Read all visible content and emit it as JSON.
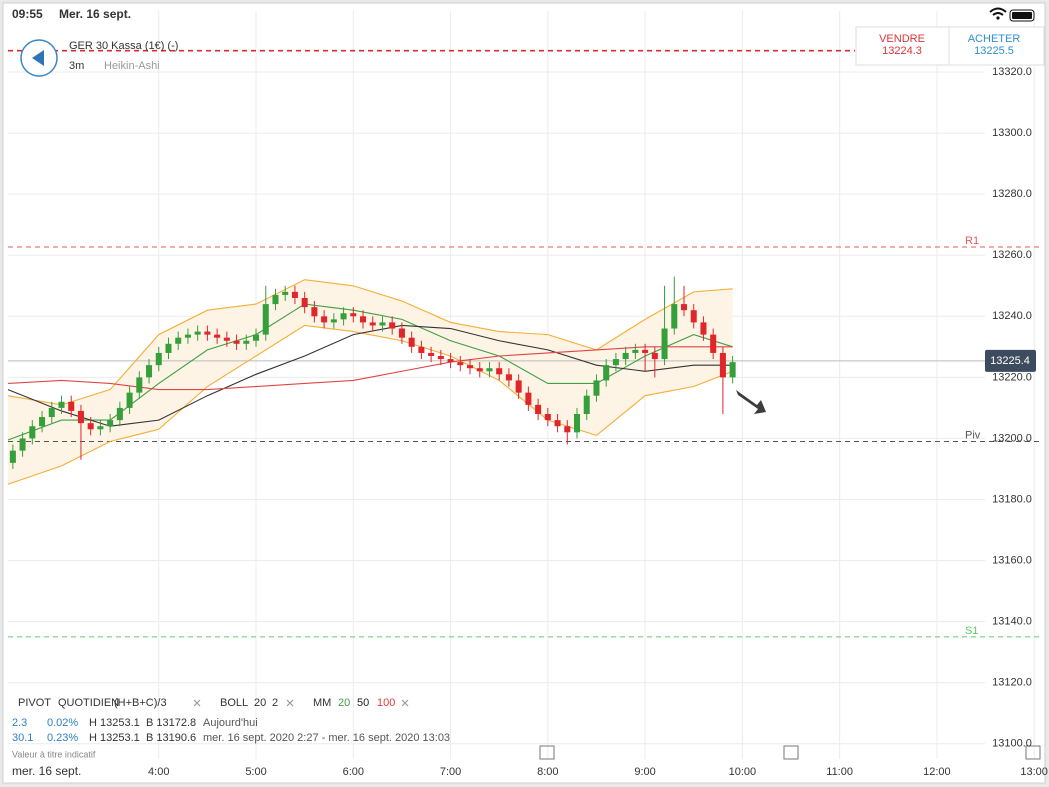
{
  "status_bar": {
    "time": "09:55",
    "date": "Mer. 16 sept."
  },
  "header": {
    "instrument": "GER 30 Kassa (1€) (-)",
    "interval": "3m",
    "style": "Heikin-Ashi"
  },
  "sell": {
    "label": "VENDRE",
    "price": "13224.3"
  },
  "buy": {
    "label": "ACHETER",
    "price": "13225.5"
  },
  "indicators": {
    "pivot": "PIVOT",
    "pivot_period": "QUOTIDIEN",
    "pivot_formula": "(H+B+C)/3",
    "boll": "BOLL",
    "boll_period": "20",
    "boll_dev": "2",
    "mm": "MM",
    "mm_periods": [
      {
        "label": "20",
        "color": "#3f9f43"
      },
      {
        "label": "50",
        "color": "#222222"
      },
      {
        "label": "100",
        "color": "#e03a3a"
      }
    ]
  },
  "stats": [
    {
      "change": 2.3,
      "percent": "0.02%",
      "high": "H 13253.1",
      "low": "B 13172.8",
      "period": "Aujourd'hui"
    },
    {
      "change": 30.1,
      "percent": "0.23%",
      "high": "H 13253.1",
      "low": "B 13190.6",
      "period": "mer. 16 sept. 2020 2:27 - mer. 16 sept. 2020 13:03"
    }
  ],
  "note": "Valeur à titre indicatif",
  "date_label": "mer. 16 sept.",
  "chart_data": {
    "type": "candlestick",
    "xlim": [
      2.45,
      13.06
    ],
    "ylim": [
      13095,
      13340
    ],
    "xticks": [
      {
        "value": 4,
        "label": "4:00"
      },
      {
        "value": 5,
        "label": "5:00"
      },
      {
        "value": 6,
        "label": "6:00"
      },
      {
        "value": 7,
        "label": "7:00"
      },
      {
        "value": 8,
        "label": "8:00"
      },
      {
        "value": 9,
        "label": "9:00"
      },
      {
        "value": 10,
        "label": "10:00"
      },
      {
        "value": 11,
        "label": "11:00"
      },
      {
        "value": 12,
        "label": "12:00"
      },
      {
        "value": 13,
        "label": "13:00"
      }
    ],
    "yticks": [
      {
        "value": 13100,
        "label": "13100.0"
      },
      {
        "value": 13120,
        "label": "13120.0"
      },
      {
        "value": 13140,
        "label": "13140.0"
      },
      {
        "value": 13160,
        "label": "13160.0"
      },
      {
        "value": 13180,
        "label": "13180.0"
      },
      {
        "value": 13200,
        "label": "13200.0"
      },
      {
        "value": 13220,
        "label": "13220.0"
      },
      {
        "value": 13240,
        "label": "13240.0"
      },
      {
        "value": 13260,
        "label": "13260.0"
      },
      {
        "value": 13280,
        "label": "13280.0"
      },
      {
        "value": 13300,
        "label": "13300.0"
      },
      {
        "value": 13320,
        "label": "13320.0"
      }
    ],
    "grid": true,
    "up_color": "#35a03b",
    "down_color": "#e0262b",
    "x": [
      2.5,
      2.6,
      2.7,
      2.8,
      2.9,
      3.0,
      3.1,
      3.2,
      3.3,
      3.4,
      3.5,
      3.6,
      3.7,
      3.8,
      3.9,
      4.0,
      4.1,
      4.2,
      4.3,
      4.4,
      4.5,
      4.6,
      4.7,
      4.8,
      4.9,
      5.0,
      5.1,
      5.2,
      5.3,
      5.4,
      5.5,
      5.6,
      5.7,
      5.8,
      5.9,
      6.0,
      6.1,
      6.2,
      6.3,
      6.4,
      6.5,
      6.6,
      6.7,
      6.8,
      6.9,
      7.0,
      7.1,
      7.2,
      7.3,
      7.4,
      7.5,
      7.6,
      7.7,
      7.8,
      7.9,
      8.0,
      8.1,
      8.2,
      8.3,
      8.4,
      8.5,
      8.6,
      8.7,
      8.8,
      8.9,
      9.0,
      9.1,
      9.2,
      9.3,
      9.4,
      9.5,
      9.6,
      9.7,
      9.8,
      9.9
    ],
    "open": [
      13192,
      13196,
      13200,
      13204,
      13207,
      13210,
      13212,
      13209,
      13205,
      13203,
      13204,
      13206,
      13210,
      13215,
      13220,
      13224,
      13228,
      13231,
      13233,
      13234,
      13235,
      13234,
      13233,
      13232,
      13231,
      13232,
      13234,
      13244,
      13247,
      13248,
      13246,
      13243,
      13240,
      13238,
      13239,
      13241,
      13240,
      13238,
      13237,
      13238,
      13236,
      13233,
      13230,
      13228,
      13227,
      13226,
      13225,
      13224,
      13223,
      13222,
      13223,
      13221,
      13219,
      13215,
      13211,
      13208,
      13206,
      13204,
      13202,
      13208,
      13214,
      13219,
      13224,
      13226,
      13228,
      13229,
      13228,
      13226,
      13236,
      13244,
      13242,
      13238,
      13234,
      13228,
      13220
    ],
    "high": [
      13198,
      13202,
      13206,
      13209,
      13212,
      13214,
      13214,
      13211,
      13207,
      13206,
      13208,
      13212,
      13217,
      13222,
      13226,
      13230,
      13233,
      13235,
      13236,
      13237,
      13237,
      13236,
      13235,
      13234,
      13234,
      13236,
      13250,
      13249,
      13250,
      13250,
      13248,
      13245,
      13242,
      13241,
      13243,
      13243,
      13242,
      13240,
      13240,
      13240,
      13238,
      13235,
      13232,
      13230,
      13229,
      13228,
      13227,
      13226,
      13225,
      13225,
      13225,
      13223,
      13221,
      13217,
      13213,
      13210,
      13208,
      13206,
      13210,
      13216,
      13221,
      13226,
      13228,
      13230,
      13231,
      13231,
      13230,
      13250,
      13253,
      13250,
      13244,
      13240,
      13236,
      13230,
      13227
    ],
    "low": [
      13190,
      13194,
      13198,
      13202,
      13205,
      13208,
      13207,
      13193,
      13201,
      13201,
      13202,
      13204,
      13208,
      13213,
      13218,
      13222,
      13226,
      13229,
      13231,
      13232,
      13232,
      13231,
      13230,
      13229,
      13229,
      13230,
      13232,
      13242,
      13245,
      13244,
      13241,
      13238,
      13236,
      13236,
      13237,
      13238,
      13236,
      13235,
      13235,
      13234,
      13231,
      13228,
      13226,
      13225,
      13224,
      13223,
      13222,
      13221,
      13220,
      13220,
      13219,
      13217,
      13213,
      13209,
      13206,
      13204,
      13202,
      13198,
      13200,
      13206,
      13212,
      13217,
      13222,
      13224,
      13226,
      13222,
      13220,
      13224,
      13234,
      13240,
      13236,
      13232,
      13226,
      13208,
      13218
    ],
    "close": [
      13196,
      13200,
      13204,
      13207,
      13210,
      13212,
      13209,
      13205,
      13203,
      13204,
      13206,
      13210,
      13215,
      13220,
      13224,
      13228,
      13231,
      13233,
      13234,
      13235,
      13234,
      13233,
      13232,
      13231,
      13232,
      13234,
      13244,
      13247,
      13248,
      13246,
      13243,
      13240,
      13238,
      13239,
      13241,
      13240,
      13238,
      13237,
      13238,
      13236,
      13233,
      13230,
      13228,
      13227,
      13226,
      13225,
      13224,
      13223,
      13222,
      13223,
      13221,
      13219,
      13215,
      13211,
      13208,
      13206,
      13204,
      13202,
      13208,
      13214,
      13219,
      13224,
      13226,
      13228,
      13229,
      13228,
      13226,
      13236,
      13244,
      13242,
      13238,
      13234,
      13228,
      13220,
      13225
    ],
    "lines_x": [
      2.45,
      3.0,
      3.5,
      4.0,
      4.5,
      5.0,
      5.5,
      6.0,
      6.5,
      7.0,
      7.5,
      8.0,
      8.5,
      9.0,
      9.5,
      9.9
    ],
    "band_fill": "#fdf4e5",
    "lines": [
      {
        "color": "#f5ae36",
        "values": [
          13214,
          13211,
          13216,
          13234,
          13242,
          13244,
          13252,
          13250,
          13245,
          13238,
          13235,
          13234,
          13229,
          13239,
          13248,
          13249
        ]
      },
      {
        "color": "#f5ae36",
        "values": [
          13185,
          13191,
          13199,
          13203,
          13217,
          13227,
          13237,
          13235,
          13232,
          13227,
          13219,
          13206,
          13201,
          13214,
          13217,
          13222
        ]
      },
      {
        "color": "#3f9f43",
        "values": [
          13199.5,
          13206,
          13206,
          13218,
          13229,
          13234,
          13244,
          13242,
          13239,
          13232,
          13227,
          13218,
          13218,
          13227,
          13234,
          13230
        ]
      },
      {
        "color": "#333333",
        "values": [
          13216,
          13209,
          13204,
          13206,
          13214,
          13221,
          13227,
          13234,
          13237,
          13236,
          13232,
          13229,
          13224,
          13222,
          13224,
          13224
        ]
      },
      {
        "color": "#e04444",
        "values": [
          13218,
          13219,
          13218,
          13216,
          13216,
          13217,
          13218,
          13219,
          13222,
          13225,
          13227,
          13228,
          13229,
          13230,
          13230,
          13230
        ]
      }
    ],
    "levels": [
      {
        "value": 13327,
        "color": "#d92b2b"
      },
      {
        "label": "R1",
        "value": 13262.7,
        "color": "#e85a5a"
      },
      {
        "label": "Piv",
        "value": 13199,
        "color": "#555555"
      },
      {
        "label": "S1",
        "value": 13135,
        "color": "#5ccc66"
      }
    ],
    "last_price": 13225.4,
    "last_price_color": "#3d4b5f"
  }
}
